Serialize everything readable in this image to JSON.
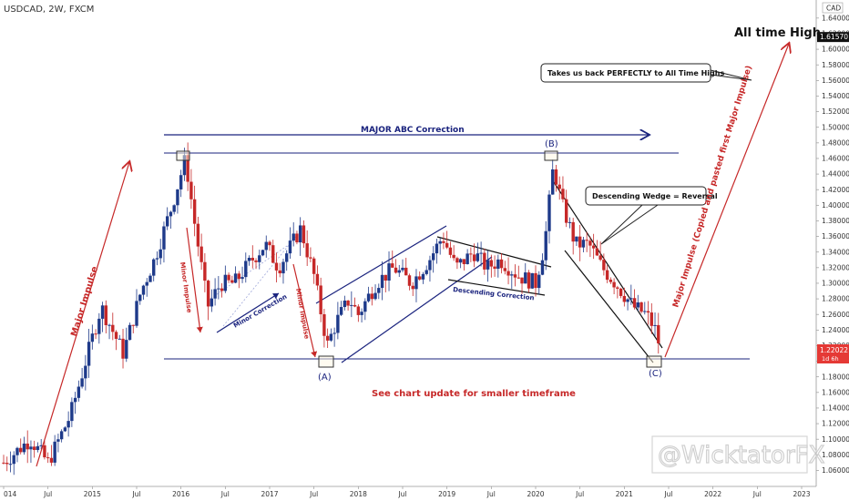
{
  "header": {
    "symbol_label": "USDCAD, 2W, FXCM"
  },
  "currency_label": "CAD",
  "watermark": "@WicktatorFX",
  "price_tags": {
    "top": "1.61570",
    "current": "1.22022",
    "countdown": "1d 6h"
  },
  "chart_data": {
    "type": "candlestick",
    "title": "USDCAD, 2W, FXCM",
    "y_range": [
      1.05,
      1.66
    ],
    "y_ticks": [
      1.06,
      1.08,
      1.1,
      1.12,
      1.14,
      1.16,
      1.18,
      1.2,
      1.22,
      1.24,
      1.26,
      1.28,
      1.3,
      1.32,
      1.34,
      1.36,
      1.38,
      1.4,
      1.42,
      1.44,
      1.46,
      1.48,
      1.5,
      1.52,
      1.54,
      1.56,
      1.58,
      1.6,
      1.62,
      1.64
    ],
    "x_range": [
      2014.0,
      2023.0
    ],
    "x_ticks": [
      {
        "label": "014",
        "t": 2014.0
      },
      {
        "label": "Jul",
        "t": 2014.5
      },
      {
        "label": "2015",
        "t": 2015.0
      },
      {
        "label": "Jul",
        "t": 2015.5
      },
      {
        "label": "2016",
        "t": 2016.0
      },
      {
        "label": "Jul",
        "t": 2016.5
      },
      {
        "label": "2017",
        "t": 2017.0
      },
      {
        "label": "Jul",
        "t": 2017.5
      },
      {
        "label": "2018",
        "t": 2018.0
      },
      {
        "label": "Jul",
        "t": 2018.5
      },
      {
        "label": "2019",
        "t": 2019.0
      },
      {
        "label": "Jul",
        "t": 2019.5
      },
      {
        "label": "2020",
        "t": 2020.0
      },
      {
        "label": "Jul",
        "t": 2020.5
      },
      {
        "label": "2021",
        "t": 2021.0
      },
      {
        "label": "Jul",
        "t": 2021.5
      },
      {
        "label": "2022",
        "t": 2022.0
      },
      {
        "label": "Jul",
        "t": 2022.5
      },
      {
        "label": "2023",
        "t": 2023.0
      }
    ],
    "price_path": [
      [
        2014.0,
        1.07
      ],
      [
        2014.3,
        1.1
      ],
      [
        2014.5,
        1.07
      ],
      [
        2014.75,
        1.13
      ],
      [
        2015.0,
        1.23
      ],
      [
        2015.1,
        1.27
      ],
      [
        2015.35,
        1.21
      ],
      [
        2015.55,
        1.29
      ],
      [
        2015.7,
        1.33
      ],
      [
        2015.9,
        1.4
      ],
      [
        2016.05,
        1.46
      ],
      [
        2016.15,
        1.38
      ],
      [
        2016.3,
        1.27
      ],
      [
        2016.45,
        1.3
      ],
      [
        2016.6,
        1.3
      ],
      [
        2016.8,
        1.33
      ],
      [
        2016.95,
        1.35
      ],
      [
        2017.1,
        1.32
      ],
      [
        2017.35,
        1.37
      ],
      [
        2017.5,
        1.31
      ],
      [
        2017.65,
        1.22
      ],
      [
        2017.75,
        1.25
      ],
      [
        2017.9,
        1.28
      ],
      [
        2018.0,
        1.26
      ],
      [
        2018.2,
        1.3
      ],
      [
        2018.4,
        1.32
      ],
      [
        2018.6,
        1.3
      ],
      [
        2018.8,
        1.33
      ],
      [
        2018.95,
        1.36
      ],
      [
        2019.1,
        1.32
      ],
      [
        2019.3,
        1.34
      ],
      [
        2019.45,
        1.32
      ],
      [
        2019.6,
        1.33
      ],
      [
        2019.8,
        1.31
      ],
      [
        2020.0,
        1.3
      ],
      [
        2020.1,
        1.35
      ],
      [
        2020.2,
        1.45
      ],
      [
        2020.3,
        1.4
      ],
      [
        2020.45,
        1.35
      ],
      [
        2020.6,
        1.35
      ],
      [
        2020.75,
        1.32
      ],
      [
        2020.9,
        1.3
      ],
      [
        2021.1,
        1.27
      ],
      [
        2021.25,
        1.26
      ],
      [
        2021.35,
        1.24
      ],
      [
        2021.42,
        1.21
      ]
    ],
    "levels": {
      "resistance": 1.467,
      "support": 1.203
    },
    "annotations": {
      "major_abc": "MAJOR ABC Correction",
      "all_time_high": "All time High",
      "takes_back": "Takes us back PERFECTLY to All Time Highs",
      "descending_wedge": "Descending Wedge = Reversal",
      "descending_correction": "Descending Correction",
      "minor_correction": "Minor Correction",
      "minor_impulse": "Minor Impulse",
      "major_impulse_left": "Major Impulse",
      "major_impulse_right": "Major Impulse (Copied and pasted first Major Impulse)",
      "update_note": "See chart update for smaller timeframe",
      "wave_a": "(A)",
      "wave_b": "(B)",
      "wave_c": "(C)"
    }
  }
}
